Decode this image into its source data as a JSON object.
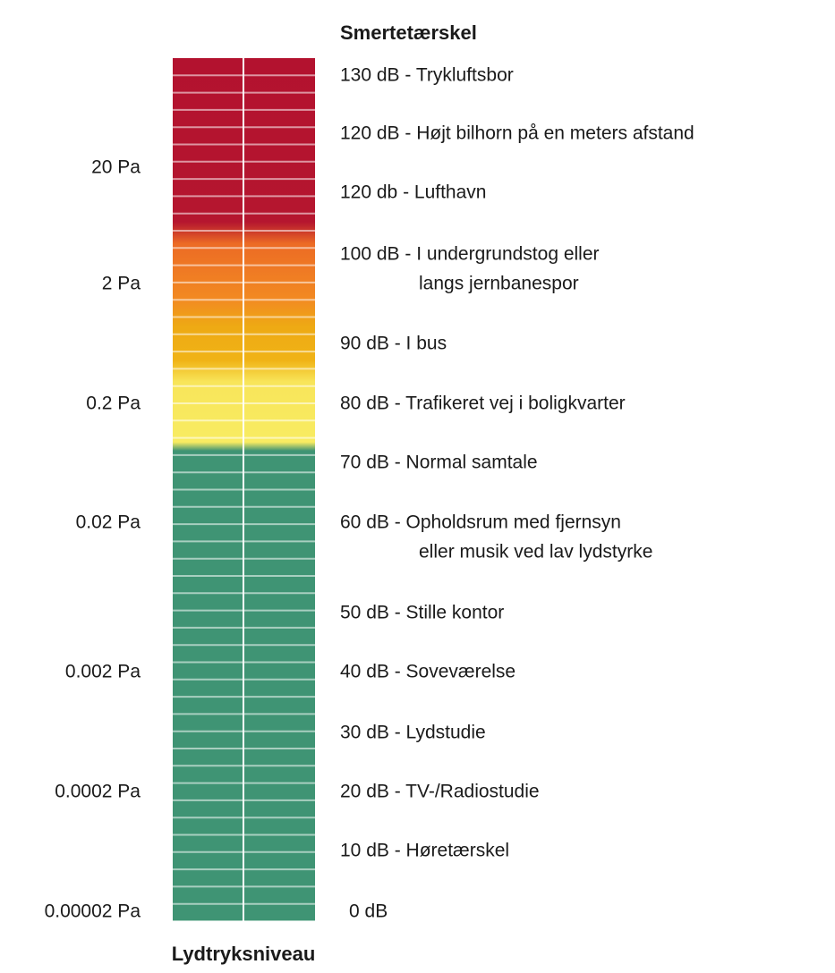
{
  "title": "Smertetærskel",
  "footer": "Lydtryksniveau",
  "pressure_labels": [
    "20 Pa",
    "2 Pa",
    "0.2 Pa",
    "0.02 Pa",
    "0.002 Pa",
    "0.0002 Pa",
    "0.00002 Pa"
  ],
  "levels": [
    {
      "text": "130 dB - Trykluftsbor"
    },
    {
      "text": "120 dB - Højt bilhorn på en meters afstand"
    },
    {
      "text": "120 db - Lufthavn"
    },
    {
      "text": "100 dB - I undergrundstog eller",
      "continuation": "langs jernbanespor"
    },
    {
      "text": "90 dB - I bus"
    },
    {
      "text": "80 dB - Trafikeret vej i boligkvarter"
    },
    {
      "text": "70 dB - Normal samtale"
    },
    {
      "text": "60 dB - Opholdsrum med fjernsyn",
      "continuation": "eller musik ved lav lydstyrke"
    },
    {
      "text": "50 dB - Stille kontor"
    },
    {
      "text": "40 dB - Soveværelse"
    },
    {
      "text": "30 dB - Lydstudie"
    },
    {
      "text": "20 dB - TV-/Radiostudie"
    },
    {
      "text": "10 dB - Høretærskel"
    },
    {
      "text": "0 dB"
    }
  ]
}
